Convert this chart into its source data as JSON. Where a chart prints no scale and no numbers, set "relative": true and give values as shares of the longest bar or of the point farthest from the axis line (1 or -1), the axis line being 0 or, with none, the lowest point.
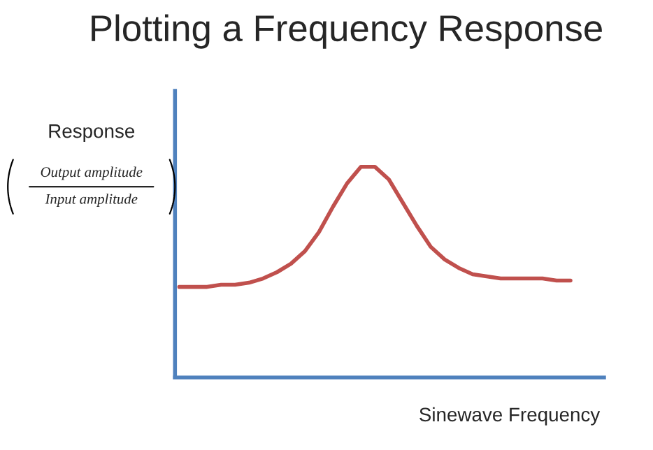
{
  "chart_data": {
    "type": "line",
    "title": "Plotting a Frequency Response",
    "xlabel": "Sinewave Frequency",
    "ylabel": "Response",
    "annotations": [
      "Output amplitude",
      "Input amplitude"
    ],
    "relative": true,
    "grid": false,
    "legend": false,
    "marker": "none",
    "line_style": "solid",
    "categories": [
      null,
      null,
      null,
      null,
      null,
      null,
      null,
      null,
      null,
      null,
      null,
      null,
      null,
      null,
      null,
      null,
      null,
      null,
      null,
      null,
      null,
      null,
      null,
      null,
      null,
      null,
      null,
      null,
      null
    ],
    "series": [
      {
        "color": "#c0504d",
        "values": [
          0.43,
          0.43,
          0.43,
          0.44,
          0.44,
          0.45,
          0.47,
          0.5,
          0.54,
          0.6,
          0.69,
          0.81,
          0.92,
          1,
          1,
          0.94,
          0.83,
          0.72,
          0.62,
          0.56,
          0.52,
          0.49,
          0.48,
          0.47,
          0.47,
          0.47,
          0.47,
          0.46,
          0.46
        ]
      }
    ]
  }
}
